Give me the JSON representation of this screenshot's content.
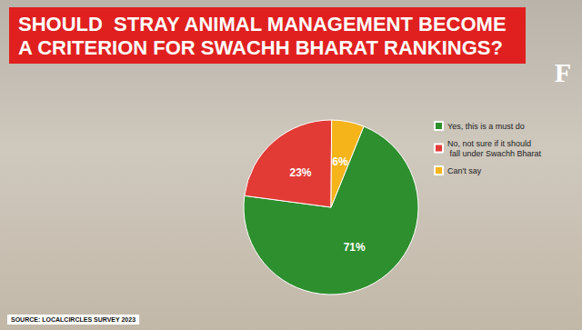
{
  "chart_data": {
    "type": "pie",
    "title": "SHOULD  STRAY ANIMAL MANAGEMENT BECOME A CRITERION FOR SWACHH BHARAT RANKINGS?",
    "categories": [
      "Yes, this is a must do",
      "No, not sure if it should fall under Swachh Bharat",
      "Can't say"
    ],
    "values": [
      71,
      23,
      6
    ],
    "value_labels": [
      "71%",
      "23%",
      "6%"
    ],
    "colors": [
      "#2e8f2e",
      "#e23b36",
      "#f4b41a"
    ],
    "data_labels": true,
    "legend": "right",
    "source": "SOURCE: LOCALCIRCLES SURVEY 2023",
    "logo": "F"
  }
}
